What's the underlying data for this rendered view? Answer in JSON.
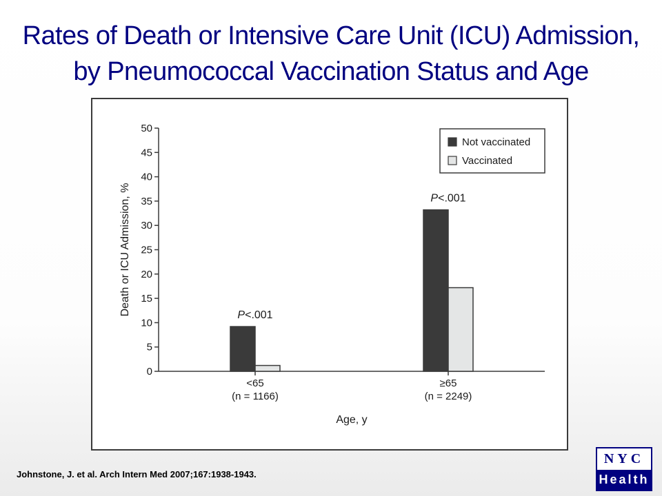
{
  "slide": {
    "title_line1": "Rates of Death or Intensive Care Unit (ICU) Admission,",
    "title_line2": "by Pneumococcal Vaccination Status and Age",
    "citation": "Johnstone, J. et al. Arch Intern Med 2007;167:1938-1943."
  },
  "logo": {
    "top_text": "NYC",
    "bottom_text": "Health",
    "color": "#000080"
  },
  "chart_data": {
    "type": "bar",
    "title": "",
    "xlabel": "Age, y",
    "ylabel": "Death or ICU Admission, %",
    "ylim": [
      0,
      50
    ],
    "yticks": [
      0,
      5,
      10,
      15,
      20,
      25,
      30,
      35,
      40,
      45,
      50
    ],
    "grid": false,
    "legend_position": "top-right",
    "categories": [
      {
        "label": "<65",
        "n": "(n = 1166)"
      },
      {
        "label": "≥65",
        "n": "(n = 2249)"
      }
    ],
    "series": [
      {
        "name": "Not vaccinated",
        "values": [
          9.2,
          33.2
        ],
        "color": "#3a3a3a"
      },
      {
        "name": "Vaccinated",
        "values": [
          1.2,
          17.2
        ],
        "color": "#e4e6e6"
      }
    ],
    "annotations": [
      {
        "category_index": 0,
        "p": "P",
        "rest": "<.001"
      },
      {
        "category_index": 1,
        "p": "P",
        "rest": "<.001"
      }
    ]
  }
}
